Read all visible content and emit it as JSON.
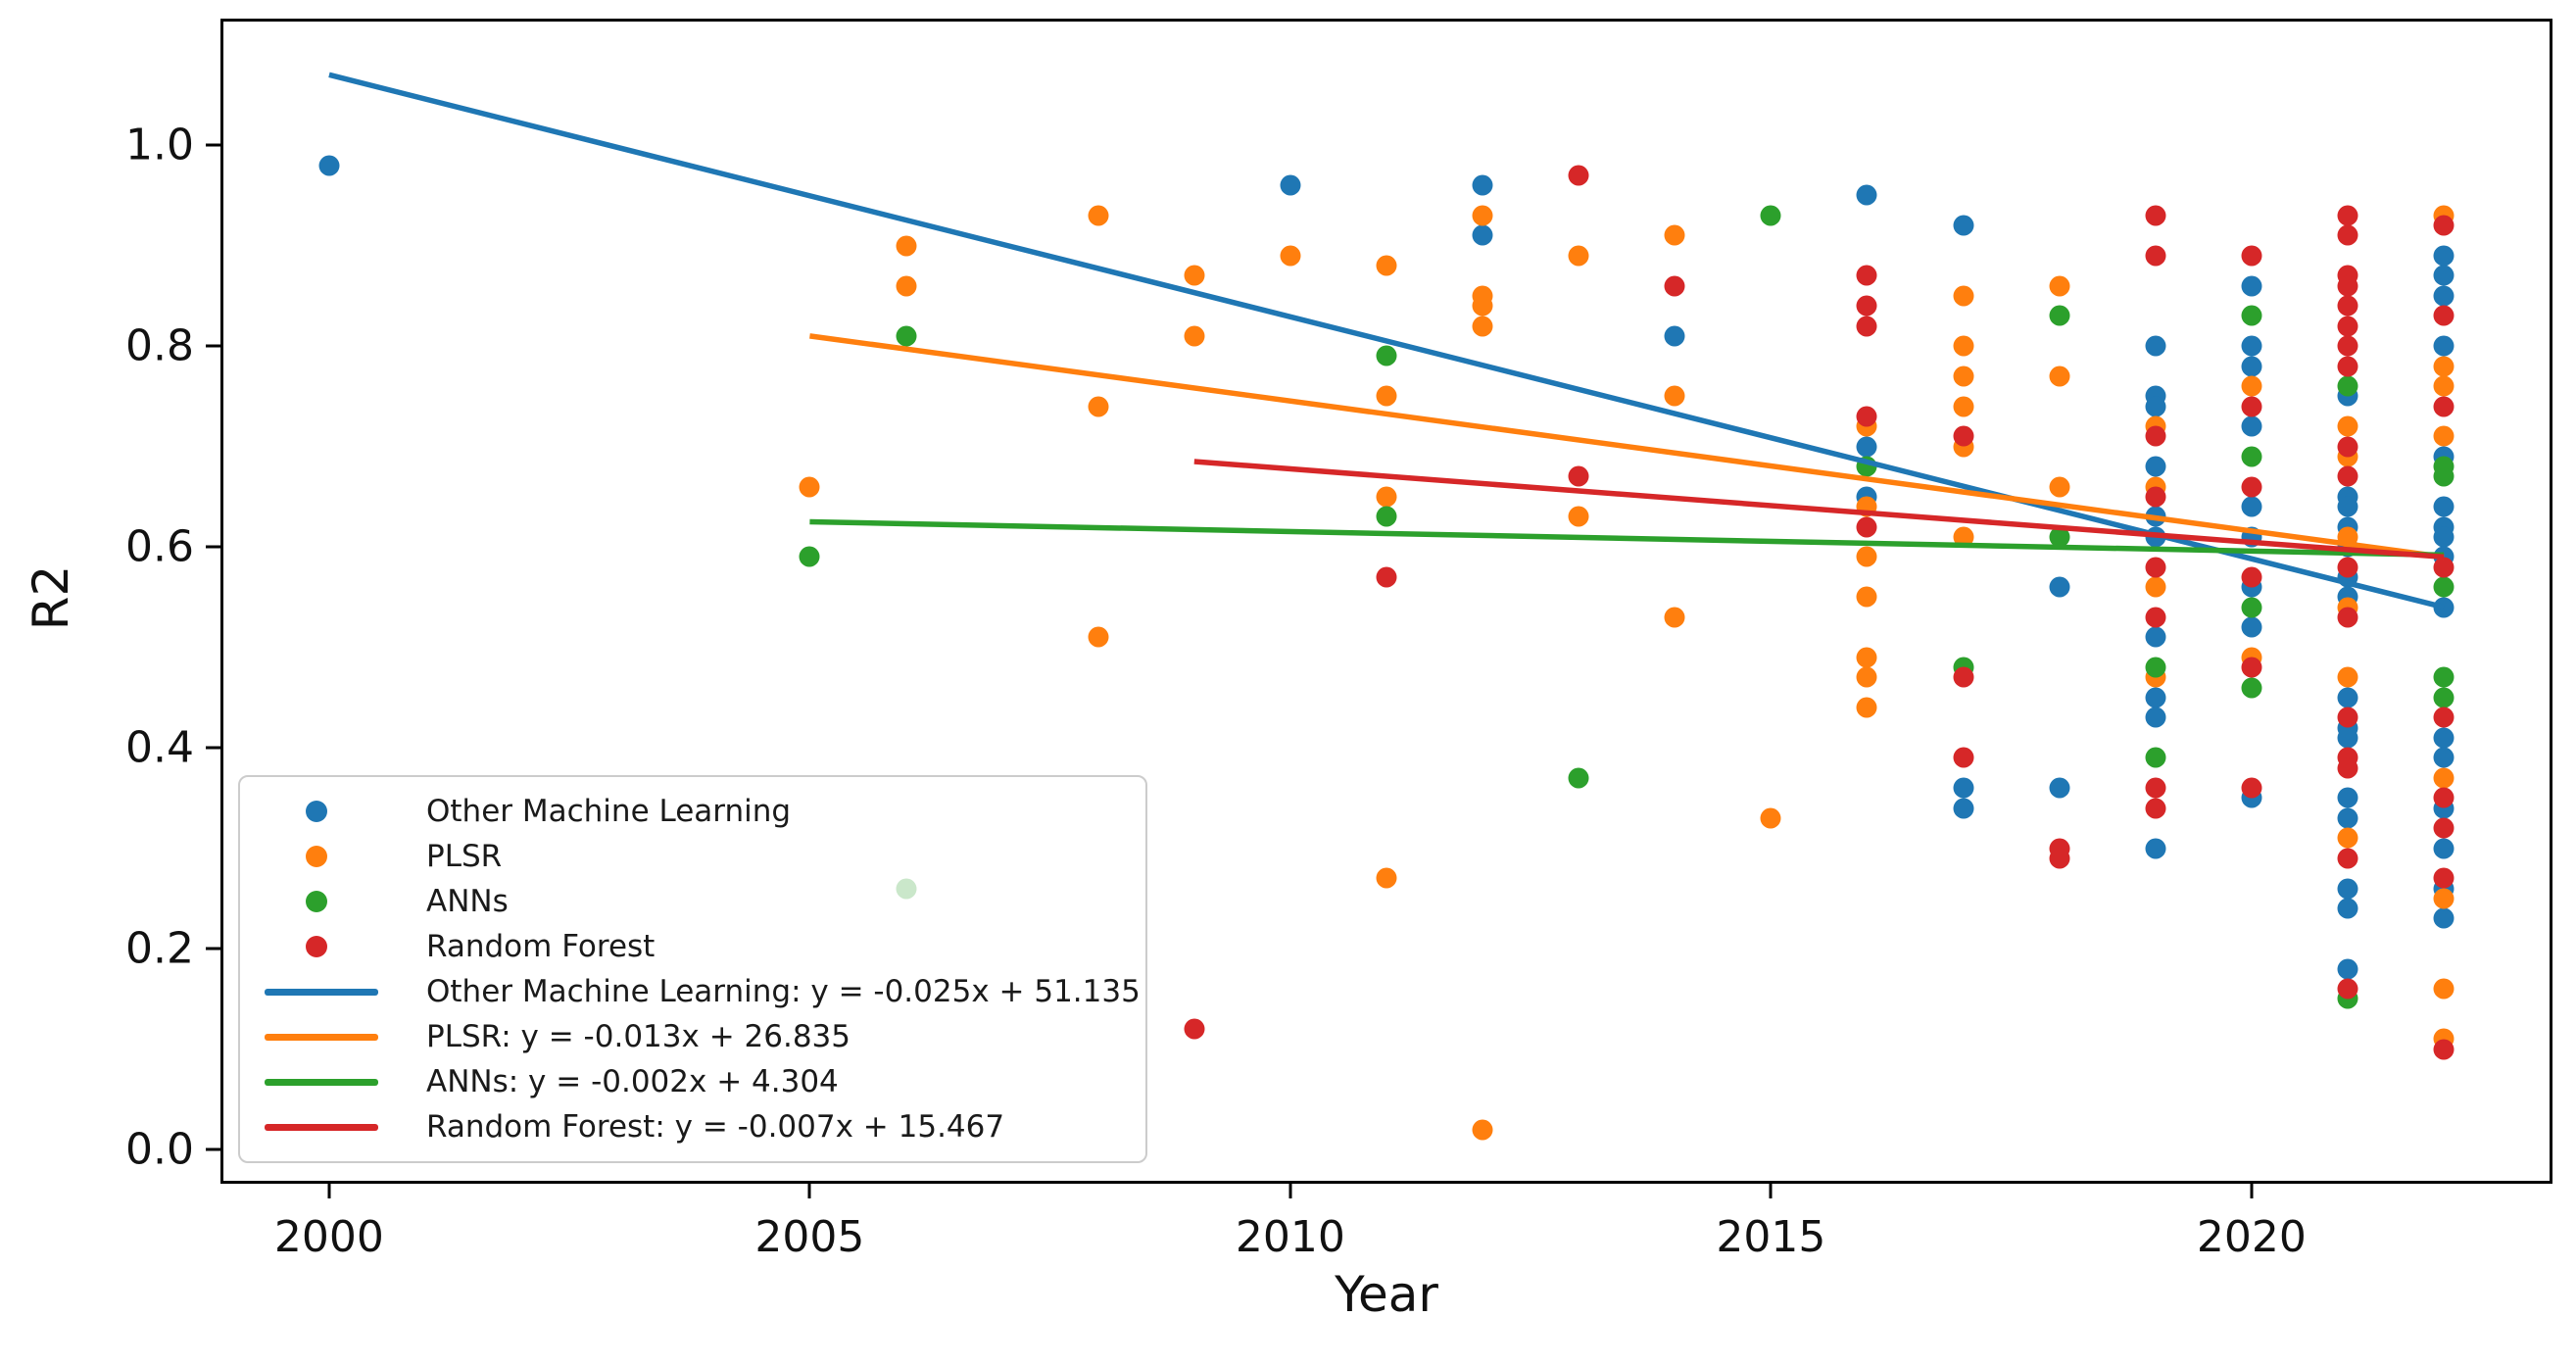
{
  "chart_data": {
    "type": "scatter",
    "title": "",
    "xlabel": "Year",
    "ylabel": "R2",
    "xlim": [
      1998.9,
      2023.1
    ],
    "ylim": [
      -0.031,
      1.123
    ],
    "grid": false,
    "legend_position": "lower left",
    "xticks": [
      2000,
      2005,
      2010,
      2015,
      2020
    ],
    "yticks": [
      "0.0",
      "0.2",
      "0.4",
      "0.6",
      "0.8",
      "1.0"
    ],
    "series": [
      {
        "name": "Other Machine Learning",
        "color": "#1f77b4",
        "points": [
          [
            2000,
            0.98
          ],
          [
            2010,
            0.96
          ],
          [
            2012,
            0.96
          ],
          [
            2012,
            0.91
          ],
          [
            2014,
            0.81
          ],
          [
            2016,
            0.95
          ],
          [
            2016,
            0.7
          ],
          [
            2016,
            0.65
          ],
          [
            2017,
            0.92
          ],
          [
            2017,
            0.36
          ],
          [
            2017,
            0.34
          ],
          [
            2018,
            0.56
          ],
          [
            2018,
            0.36
          ],
          [
            2019,
            0.8
          ],
          [
            2019,
            0.75
          ],
          [
            2019,
            0.74
          ],
          [
            2019,
            0.68
          ],
          [
            2019,
            0.63
          ],
          [
            2019,
            0.61
          ],
          [
            2019,
            0.51
          ],
          [
            2019,
            0.45
          ],
          [
            2019,
            0.43
          ],
          [
            2019,
            0.3
          ],
          [
            2020,
            0.86
          ],
          [
            2020,
            0.8
          ],
          [
            2020,
            0.78
          ],
          [
            2020,
            0.72
          ],
          [
            2020,
            0.64
          ],
          [
            2020,
            0.61
          ],
          [
            2020,
            0.56
          ],
          [
            2020,
            0.52
          ],
          [
            2020,
            0.35
          ],
          [
            2021,
            0.75
          ],
          [
            2021,
            0.65
          ],
          [
            2021,
            0.64
          ],
          [
            2021,
            0.62
          ],
          [
            2021,
            0.6
          ],
          [
            2021,
            0.57
          ],
          [
            2021,
            0.55
          ],
          [
            2021,
            0.45
          ],
          [
            2021,
            0.42
          ],
          [
            2021,
            0.41
          ],
          [
            2021,
            0.35
          ],
          [
            2021,
            0.33
          ],
          [
            2021,
            0.26
          ],
          [
            2021,
            0.24
          ],
          [
            2021,
            0.18
          ],
          [
            2022,
            0.89
          ],
          [
            2022,
            0.87
          ],
          [
            2022,
            0.85
          ],
          [
            2022,
            0.8
          ],
          [
            2022,
            0.69
          ],
          [
            2022,
            0.64
          ],
          [
            2022,
            0.62
          ],
          [
            2022,
            0.61
          ],
          [
            2022,
            0.59
          ],
          [
            2022,
            0.54
          ],
          [
            2022,
            0.41
          ],
          [
            2022,
            0.39
          ],
          [
            2022,
            0.34
          ],
          [
            2022,
            0.3
          ],
          [
            2022,
            0.26
          ],
          [
            2022,
            0.23
          ]
        ]
      },
      {
        "name": "PLSR",
        "color": "#ff7f0e",
        "points": [
          [
            2005,
            0.66
          ],
          [
            2006,
            0.9
          ],
          [
            2006,
            0.86
          ],
          [
            2008,
            0.93
          ],
          [
            2008,
            0.74
          ],
          [
            2008,
            0.51
          ],
          [
            2009,
            0.87
          ],
          [
            2009,
            0.81
          ],
          [
            2010,
            0.89
          ],
          [
            2011,
            0.88
          ],
          [
            2011,
            0.75
          ],
          [
            2011,
            0.65
          ],
          [
            2011,
            0.27
          ],
          [
            2012,
            0.93
          ],
          [
            2012,
            0.85
          ],
          [
            2012,
            0.84
          ],
          [
            2012,
            0.82
          ],
          [
            2012,
            0.02
          ],
          [
            2013,
            0.89
          ],
          [
            2013,
            0.63
          ],
          [
            2014,
            0.91
          ],
          [
            2014,
            0.75
          ],
          [
            2014,
            0.53
          ],
          [
            2015,
            0.33
          ],
          [
            2016,
            0.72
          ],
          [
            2016,
            0.64
          ],
          [
            2016,
            0.59
          ],
          [
            2016,
            0.55
          ],
          [
            2016,
            0.49
          ],
          [
            2016,
            0.47
          ],
          [
            2016,
            0.44
          ],
          [
            2017,
            0.85
          ],
          [
            2017,
            0.8
          ],
          [
            2017,
            0.77
          ],
          [
            2017,
            0.74
          ],
          [
            2017,
            0.7
          ],
          [
            2017,
            0.61
          ],
          [
            2018,
            0.86
          ],
          [
            2018,
            0.77
          ],
          [
            2018,
            0.66
          ],
          [
            2019,
            0.72
          ],
          [
            2019,
            0.66
          ],
          [
            2019,
            0.56
          ],
          [
            2019,
            0.47
          ],
          [
            2020,
            0.76
          ],
          [
            2020,
            0.49
          ],
          [
            2021,
            0.72
          ],
          [
            2021,
            0.69
          ],
          [
            2021,
            0.61
          ],
          [
            2021,
            0.54
          ],
          [
            2021,
            0.47
          ],
          [
            2021,
            0.31
          ],
          [
            2022,
            0.93
          ],
          [
            2022,
            0.78
          ],
          [
            2022,
            0.76
          ],
          [
            2022,
            0.71
          ],
          [
            2022,
            0.37
          ],
          [
            2022,
            0.25
          ],
          [
            2022,
            0.16
          ],
          [
            2022,
            0.11
          ]
        ]
      },
      {
        "name": "ANNs",
        "color": "#2ca02c",
        "points": [
          [
            2005,
            0.59
          ],
          [
            2006,
            0.81
          ],
          [
            2006,
            0.26
          ],
          [
            2011,
            0.79
          ],
          [
            2011,
            0.63
          ],
          [
            2013,
            0.37
          ],
          [
            2015,
            0.93
          ],
          [
            2016,
            0.68
          ],
          [
            2017,
            0.48
          ],
          [
            2018,
            0.83
          ],
          [
            2018,
            0.61
          ],
          [
            2019,
            0.48
          ],
          [
            2019,
            0.39
          ],
          [
            2020,
            0.83
          ],
          [
            2020,
            0.69
          ],
          [
            2020,
            0.54
          ],
          [
            2020,
            0.46
          ],
          [
            2021,
            0.76
          ],
          [
            2021,
            0.15
          ],
          [
            2022,
            0.68
          ],
          [
            2022,
            0.67
          ],
          [
            2022,
            0.56
          ],
          [
            2022,
            0.47
          ],
          [
            2022,
            0.45
          ]
        ]
      },
      {
        "name": "Random Forest",
        "color": "#d62728",
        "points": [
          [
            2009,
            0.12
          ],
          [
            2011,
            0.57
          ],
          [
            2013,
            0.97
          ],
          [
            2013,
            0.67
          ],
          [
            2014,
            0.86
          ],
          [
            2016,
            0.87
          ],
          [
            2016,
            0.84
          ],
          [
            2016,
            0.82
          ],
          [
            2016,
            0.73
          ],
          [
            2016,
            0.62
          ],
          [
            2017,
            0.71
          ],
          [
            2017,
            0.47
          ],
          [
            2017,
            0.39
          ],
          [
            2018,
            0.3
          ],
          [
            2018,
            0.29
          ],
          [
            2019,
            0.93
          ],
          [
            2019,
            0.89
          ],
          [
            2019,
            0.71
          ],
          [
            2019,
            0.65
          ],
          [
            2019,
            0.58
          ],
          [
            2019,
            0.53
          ],
          [
            2019,
            0.36
          ],
          [
            2019,
            0.34
          ],
          [
            2020,
            0.89
          ],
          [
            2020,
            0.74
          ],
          [
            2020,
            0.66
          ],
          [
            2020,
            0.57
          ],
          [
            2020,
            0.48
          ],
          [
            2020,
            0.36
          ],
          [
            2021,
            0.93
          ],
          [
            2021,
            0.91
          ],
          [
            2021,
            0.87
          ],
          [
            2021,
            0.86
          ],
          [
            2021,
            0.84
          ],
          [
            2021,
            0.82
          ],
          [
            2021,
            0.8
          ],
          [
            2021,
            0.78
          ],
          [
            2021,
            0.7
          ],
          [
            2021,
            0.67
          ],
          [
            2021,
            0.58
          ],
          [
            2021,
            0.53
          ],
          [
            2021,
            0.43
          ],
          [
            2021,
            0.39
          ],
          [
            2021,
            0.38
          ],
          [
            2021,
            0.29
          ],
          [
            2021,
            0.16
          ],
          [
            2022,
            0.92
          ],
          [
            2022,
            0.83
          ],
          [
            2022,
            0.74
          ],
          [
            2022,
            0.58
          ],
          [
            2022,
            0.43
          ],
          [
            2022,
            0.35
          ],
          [
            2022,
            0.32
          ],
          [
            2022,
            0.27
          ],
          [
            2022,
            0.1
          ]
        ]
      }
    ],
    "trendlines": [
      {
        "label": "Other Machine Learning: y = -0.025x + 51.135",
        "color": "#1f77b4",
        "x1": 2000,
        "y1": 1.07,
        "x2": 2022,
        "y2": 0.54
      },
      {
        "label": "PLSR: y = -0.013x + 26.835",
        "color": "#ff7f0e",
        "x1": 2005,
        "y1": 0.81,
        "x2": 2022,
        "y2": 0.59
      },
      {
        "label": "ANNs: y = -0.002x + 4.304",
        "color": "#2ca02c",
        "x1": 2005,
        "y1": 0.625,
        "x2": 2022,
        "y2": 0.592
      },
      {
        "label": "Random Forest: y = -0.007x + 15.467",
        "color": "#d62728",
        "x1": 2009,
        "y1": 0.685,
        "x2": 2022,
        "y2": 0.59
      }
    ]
  }
}
